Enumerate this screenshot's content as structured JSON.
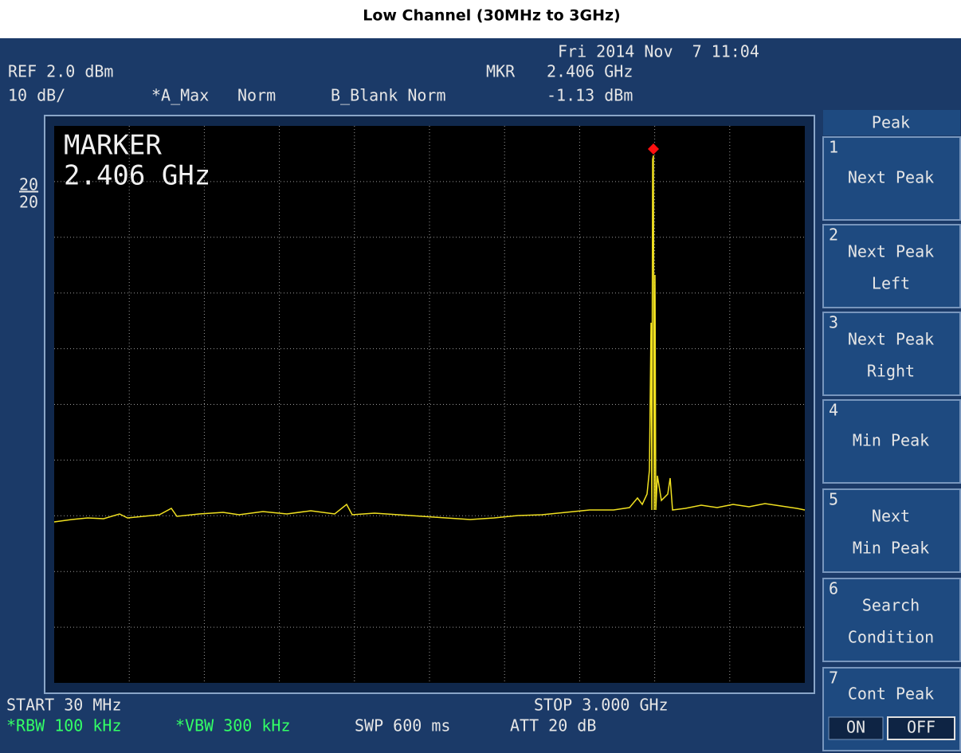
{
  "title": "Low Channel (30MHz to 3GHz)",
  "status": {
    "datetime": "Fri 2014 Nov  7 11:04",
    "ref": "REF 2.0 dBm",
    "scale": "10 dB/",
    "trace_a": "*A_Max",
    "norm_a": "Norm",
    "trace_b": "B_Blank Norm",
    "marker_label": "MKR",
    "marker_freq": "2.406 GHz",
    "marker_level": "-1.13 dBm"
  },
  "side": [
    "20",
    "20"
  ],
  "screen": {
    "marker_title": "MARKER",
    "marker_freq": "2.406 GHz"
  },
  "footer": {
    "start": "START 30 MHz",
    "stop": "STOP 3.000 GHz",
    "rbw": "*RBW 100 kHz",
    "vbw": "*VBW 300 kHz",
    "swp": "SWP 600 ms",
    "att": "ATT 20 dB"
  },
  "menu": {
    "title": "Peak",
    "keys": [
      {
        "number": "1",
        "label": [
          "Next Peak"
        ]
      },
      {
        "number": "2",
        "label": [
          "Next Peak",
          "Left"
        ]
      },
      {
        "number": "3",
        "label": [
          "Next Peak",
          "Right"
        ]
      },
      {
        "number": "4",
        "label": [
          "Min Peak"
        ]
      },
      {
        "number": "5",
        "label": [
          "Next",
          "Min Peak"
        ]
      },
      {
        "number": "6",
        "label": [
          "Search",
          "Condition"
        ]
      },
      {
        "number": "7",
        "label": [
          "Cont Peak"
        ]
      }
    ],
    "toggle": [
      "ON",
      "OFF"
    ]
  }
}
